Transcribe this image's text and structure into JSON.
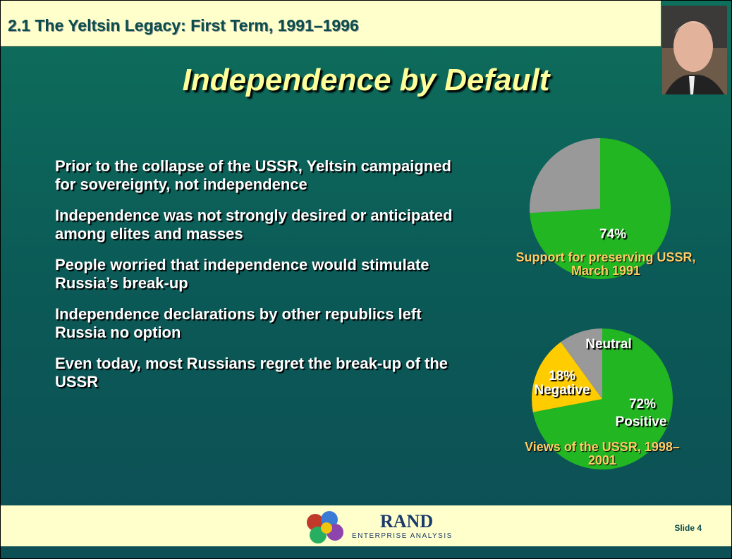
{
  "header": {
    "title": "2.1  The Yeltsin Legacy:  First Term, 1991–1996"
  },
  "heading": "Independence by Default",
  "bullets": [
    "Prior to the collapse of the USSR, Yeltsin campaigned for sovereignty, not independence",
    "Independence was not strongly desired or anticipated among elites and masses",
    "People worried that independence would stimulate Russia’s break-up",
    "Independence declarations by other republics left Russia no option",
    "Even today, most Russians regret the break-up of the USSR"
  ],
  "chart_data": [
    {
      "type": "pie",
      "caption": "Support for preserving USSR, March 1991",
      "categories": [
        null,
        null
      ],
      "values": [
        74,
        26
      ],
      "value_labels": [
        "74%",
        null
      ],
      "colors": [
        "#22b622",
        "#999999"
      ]
    },
    {
      "type": "pie",
      "caption": "Views of the USSR, 1998–2001",
      "categories": [
        "Positive",
        "Negative",
        "Neutral"
      ],
      "values": [
        72,
        18,
        10
      ],
      "value_labels": [
        "72%",
        "18%",
        null
      ],
      "colors": [
        "#22b622",
        "#ffcc00",
        "#999999"
      ]
    }
  ],
  "footer": {
    "logo": "RAND",
    "logo_subtitle": "ENTERPRISE ANALYSIS",
    "slide_number": "Slide 4"
  }
}
